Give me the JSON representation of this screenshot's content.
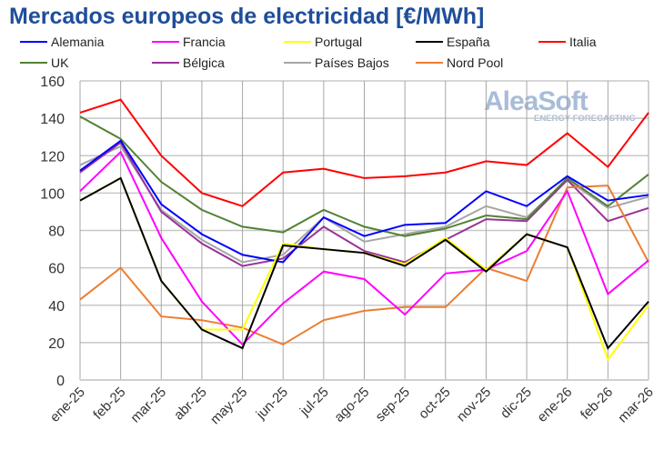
{
  "chart_data": {
    "type": "line",
    "title": "Mercados europeos de electricidad [€/MWh]",
    "categories": [
      "ene-25",
      "feb-25",
      "mar-25",
      "abr-25",
      "may-25",
      "jun-25",
      "jul-25",
      "ago-25",
      "sep-25",
      "oct-25",
      "nov-25",
      "dic-25",
      "ene-26",
      "feb-26",
      "mar-26"
    ],
    "ylim": [
      0,
      160
    ],
    "yticks": [
      0,
      20,
      40,
      60,
      80,
      100,
      120,
      140,
      160
    ],
    "grid": true,
    "legend_position": "top",
    "series": [
      {
        "name": "Alemania",
        "color": "#0000ff",
        "values": [
          112,
          128,
          94,
          78,
          67,
          63,
          87,
          77,
          83,
          84,
          101,
          93,
          109,
          96,
          99
        ]
      },
      {
        "name": "Francia",
        "color": "#ff00ff",
        "values": [
          101,
          122,
          76,
          42,
          19,
          41,
          58,
          54,
          35,
          57,
          59,
          69,
          101,
          46,
          64
        ]
      },
      {
        "name": "Portugal",
        "color": "#ffff00",
        "values": [
          96,
          108,
          53,
          27,
          27,
          73,
          70,
          68,
          62,
          76,
          59,
          78,
          71,
          11,
          40
        ]
      },
      {
        "name": "España",
        "color": "#000000",
        "values": [
          96,
          108,
          53,
          27,
          17,
          72,
          70,
          68,
          61,
          75,
          58,
          78,
          71,
          17,
          42
        ]
      },
      {
        "name": "Italia",
        "color": "#ff0000",
        "values": [
          143,
          150,
          120,
          100,
          93,
          111,
          113,
          108,
          109,
          111,
          117,
          115,
          132,
          114,
          143
        ]
      },
      {
        "name": "UK",
        "color": "#538135",
        "values": [
          141,
          129,
          106,
          91,
          82,
          79,
          91,
          82,
          77,
          81,
          88,
          86,
          108,
          93,
          110
        ]
      },
      {
        "name": "Bélgica",
        "color": "#993399",
        "values": [
          111,
          127,
          90,
          73,
          61,
          65,
          82,
          69,
          63,
          75,
          86,
          85,
          107,
          85,
          92
        ]
      },
      {
        "name": "Países Bajos",
        "color": "#a6a6a6",
        "values": [
          115,
          125,
          91,
          75,
          63,
          67,
          87,
          74,
          78,
          82,
          93,
          87,
          107,
          92,
          98
        ]
      },
      {
        "name": "Nord Pool",
        "color": "#ed7d31",
        "values": [
          43,
          60,
          34,
          32,
          28,
          19,
          32,
          37,
          39,
          39,
          60,
          53,
          103,
          104,
          63
        ]
      }
    ]
  },
  "watermark": {
    "brand": "AleaSoft",
    "tagline": "ENERGY FORECASTING"
  }
}
